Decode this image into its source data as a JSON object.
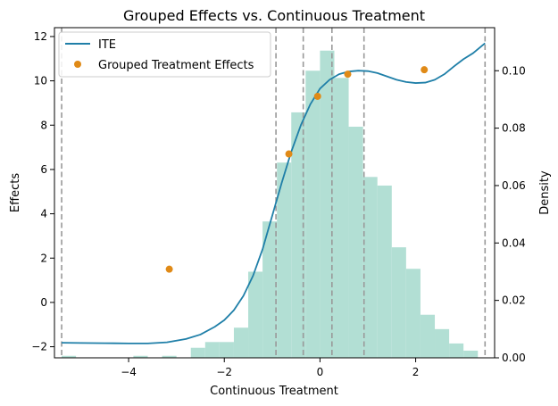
{
  "chart_data": {
    "type": "histogram-line-scatter",
    "title": "Grouped Effects vs. Continuous Treatment",
    "xlabel": "Continuous Treatment",
    "ylabel": "Effects",
    "y2label": "Density",
    "xlim": [
      -5.55,
      3.65
    ],
    "ylim": [
      -2.5,
      12.4
    ],
    "y2lim": [
      0.0,
      0.115
    ],
    "xticks": [
      -4,
      -2,
      0,
      2
    ],
    "xtick_labels": [
      "−4",
      "−2",
      "0",
      "2"
    ],
    "yticks": [
      -2,
      0,
      2,
      4,
      6,
      8,
      10,
      12
    ],
    "ytick_labels": [
      "−2",
      "0",
      "2",
      "4",
      "6",
      "8",
      "10",
      "12"
    ],
    "y2ticks": [
      0.0,
      0.02,
      0.04,
      0.06,
      0.08,
      0.1
    ],
    "y2tick_labels": [
      "0.00",
      "0.02",
      "0.04",
      "0.06",
      "0.08",
      "0.10"
    ],
    "legend": {
      "position": "upper-left",
      "entries": [
        "ITE",
        "Grouped Treatment Effects"
      ]
    },
    "colors": {
      "line": "#1f7fa8",
      "points": "#e08a17",
      "hist": "#b2dfd4",
      "vlines": "#999999"
    },
    "histogram": {
      "bin_width": 0.3,
      "bins": [
        {
          "start": -5.4,
          "density": 0.0007
        },
        {
          "start": -3.9,
          "density": 0.0007
        },
        {
          "start": -3.3,
          "density": 0.0007
        },
        {
          "start": -2.7,
          "density": 0.0035
        },
        {
          "start": -2.4,
          "density": 0.0055
        },
        {
          "start": -2.1,
          "density": 0.0055
        },
        {
          "start": -1.8,
          "density": 0.0105
        },
        {
          "start": -1.5,
          "density": 0.03
        },
        {
          "start": -1.2,
          "density": 0.0475
        },
        {
          "start": -0.9,
          "density": 0.068
        },
        {
          "start": -0.6,
          "density": 0.0855
        },
        {
          "start": -0.3,
          "density": 0.1
        },
        {
          "start": 0.0,
          "density": 0.107
        },
        {
          "start": 0.3,
          "density": 0.0975
        },
        {
          "start": 0.6,
          "density": 0.0805
        },
        {
          "start": 0.9,
          "density": 0.063
        },
        {
          "start": 1.2,
          "density": 0.06
        },
        {
          "start": 1.5,
          "density": 0.0385
        },
        {
          "start": 1.8,
          "density": 0.031
        },
        {
          "start": 2.1,
          "density": 0.015
        },
        {
          "start": 2.4,
          "density": 0.01
        },
        {
          "start": 2.7,
          "density": 0.005
        },
        {
          "start": 3.0,
          "density": 0.0025
        }
      ]
    },
    "ite_curve": {
      "name": "ITE",
      "x": [
        -5.4,
        -5.0,
        -4.5,
        -4.0,
        -3.6,
        -3.2,
        -2.8,
        -2.5,
        -2.2,
        -2.0,
        -1.8,
        -1.6,
        -1.4,
        -1.2,
        -1.0,
        -0.8,
        -0.6,
        -0.4,
        -0.2,
        0.0,
        0.2,
        0.4,
        0.6,
        0.8,
        1.0,
        1.2,
        1.4,
        1.6,
        1.8,
        2.0,
        2.2,
        2.4,
        2.6,
        2.8,
        3.0,
        3.2,
        3.45
      ],
      "y": [
        -1.82,
        -1.83,
        -1.84,
        -1.85,
        -1.85,
        -1.8,
        -1.65,
        -1.45,
        -1.1,
        -0.8,
        -0.35,
        0.3,
        1.2,
        2.4,
        3.9,
        5.4,
        6.8,
        8.0,
        8.95,
        9.65,
        10.05,
        10.3,
        10.42,
        10.46,
        10.44,
        10.35,
        10.2,
        10.05,
        9.95,
        9.9,
        9.92,
        10.05,
        10.3,
        10.65,
        10.98,
        11.25,
        11.7
      ]
    },
    "grouped_effects": {
      "name": "Grouped Treatment Effects",
      "x": [
        -3.15,
        -0.65,
        -0.05,
        0.58,
        2.18
      ],
      "y": [
        1.5,
        6.7,
        9.3,
        10.3,
        10.5
      ]
    },
    "group_boundaries": [
      -5.4,
      -0.92,
      -0.35,
      0.25,
      0.92,
      3.45
    ]
  }
}
